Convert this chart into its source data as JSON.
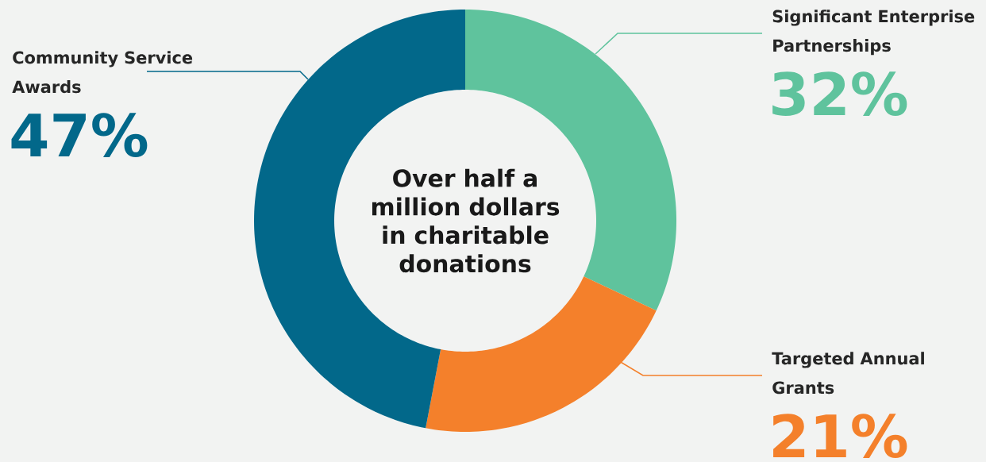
{
  "chart_data": {
    "type": "donut",
    "categories": [
      "Significant Enterprise Partnerships",
      "Targeted Annual Grants",
      "Community Service Awards"
    ],
    "values": [
      32,
      21,
      47
    ],
    "colors": [
      "#5fc39d",
      "#f4802b",
      "#02688a"
    ],
    "value_labels": [
      "32%",
      "21%",
      "47%"
    ],
    "annotations": [
      "Over half a million dollars in charitable donations"
    ]
  }
}
